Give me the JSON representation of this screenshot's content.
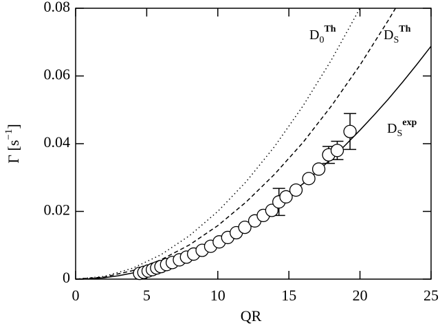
{
  "chart_data": {
    "type": "scatter",
    "xlabel": "QR",
    "ylabel": {
      "base": "Γ [s",
      "sup": "−1",
      "end": "]"
    },
    "xlim": [
      0,
      25
    ],
    "ylim": [
      0,
      0.08
    ],
    "xticks": [
      0,
      5,
      10,
      15,
      20,
      25
    ],
    "yticks": [
      0,
      0.02,
      0.04,
      0.06,
      0.08
    ],
    "annotations": [
      {
        "base": "D",
        "sub": "0",
        "sup": "Th"
      },
      {
        "base": "D",
        "sub": "S",
        "sup": "Th"
      },
      {
        "base": "D",
        "sub": "S",
        "sup": "exp"
      }
    ],
    "series": [
      {
        "type": "line",
        "style": "dotted",
        "color": "#000",
        "x": [
          0,
          2,
          4,
          6,
          8,
          10,
          12,
          14,
          16,
          18,
          20
        ],
        "y": [
          0,
          0.0008,
          0.0032,
          0.0072,
          0.0128,
          0.02,
          0.0288,
          0.0392,
          0.0512,
          0.0648,
          0.08
        ]
      },
      {
        "type": "line",
        "style": "dashed",
        "color": "#000",
        "x": [
          0,
          2,
          4,
          6,
          8,
          10,
          12,
          14,
          16,
          18,
          20,
          22,
          22.5
        ],
        "y": [
          0,
          0.0006,
          0.0025,
          0.0057,
          0.0101,
          0.0158,
          0.0228,
          0.031,
          0.0404,
          0.0512,
          0.0632,
          0.0765,
          0.08
        ]
      },
      {
        "type": "line",
        "style": "solid",
        "color": "#000",
        "x": [
          0,
          1,
          2,
          3,
          4,
          5,
          6,
          7,
          8,
          9,
          10,
          11,
          12,
          13,
          14,
          15,
          16,
          17,
          18,
          19,
          20,
          21,
          22,
          23,
          24,
          25
        ],
        "y": [
          0,
          0.0001,
          0.0004,
          0.001,
          0.0018,
          0.0028,
          0.004,
          0.0054,
          0.007,
          0.0089,
          0.011,
          0.0133,
          0.0158,
          0.0186,
          0.0216,
          0.0248,
          0.0282,
          0.0318,
          0.0356,
          0.0397,
          0.044,
          0.0485,
          0.0532,
          0.0582,
          0.0634,
          0.0688
        ]
      },
      {
        "type": "scatter",
        "color": "#000",
        "x": [
          4.5,
          4.8,
          5.1,
          5.4,
          5.7,
          6.0,
          6.4,
          6.8,
          7.3,
          7.8,
          8.3,
          8.9,
          9.5,
          10.1,
          10.7,
          11.3,
          11.9,
          12.6,
          13.2,
          13.8,
          14.3,
          14.8,
          15.5,
          16.4,
          17.1,
          17.8,
          18.4,
          19.3
        ],
        "y": [
          0.0017,
          0.002,
          0.0024,
          0.0028,
          0.0033,
          0.0037,
          0.0043,
          0.0049,
          0.0057,
          0.0065,
          0.0074,
          0.0085,
          0.0097,
          0.011,
          0.0123,
          0.0137,
          0.0153,
          0.0172,
          0.0188,
          0.0203,
          0.0228,
          0.0243,
          0.0263,
          0.0297,
          0.0325,
          0.0367,
          0.038,
          0.0436
        ],
        "errors": [
          null,
          null,
          null,
          null,
          null,
          null,
          null,
          null,
          null,
          null,
          null,
          null,
          null,
          null,
          null,
          null,
          null,
          null,
          null,
          null,
          0.004,
          null,
          null,
          null,
          null,
          0.0025,
          0.0027,
          0.0053
        ]
      }
    ]
  }
}
